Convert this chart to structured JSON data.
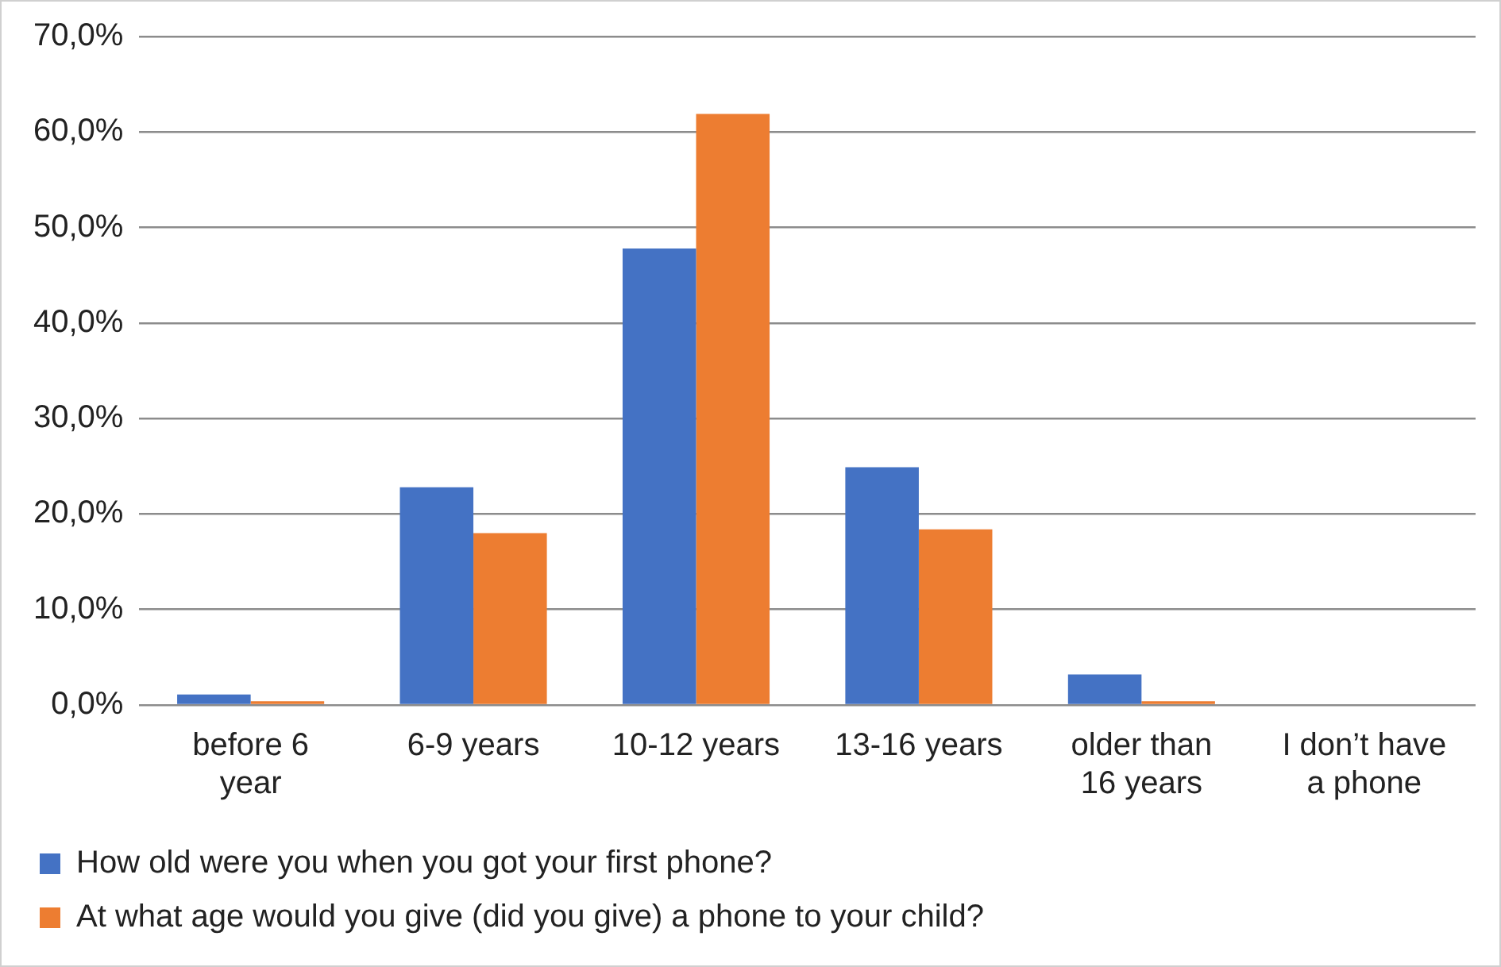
{
  "chart_data": {
    "type": "bar",
    "categories": [
      "before 6 year",
      "6-9 years",
      "10-12 years",
      "13-16 years",
      "older than 16 years",
      "I don’t have a phone"
    ],
    "series": [
      {
        "name": "How old were you when you got your first phone?",
        "color": "#4472c4",
        "values": [
          1.1,
          22.8,
          47.8,
          24.9,
          3.2,
          0
        ]
      },
      {
        "name": "At what age would you give (did you give) a phone to your child?",
        "color": "#ed7d31",
        "values": [
          0.4,
          18.0,
          61.9,
          18.4,
          0.4,
          0
        ]
      }
    ],
    "ylim": [
      0,
      70
    ],
    "yticks": [
      {
        "value": 0,
        "label": "0,0%"
      },
      {
        "value": 10,
        "label": "10,0%"
      },
      {
        "value": 20,
        "label": "20,0%"
      },
      {
        "value": 30,
        "label": "30,0%"
      },
      {
        "value": 40,
        "label": "40,0%"
      },
      {
        "value": 50,
        "label": "50,0%"
      },
      {
        "value": 60,
        "label": "60,0%"
      },
      {
        "value": 70,
        "label": "70,0%"
      }
    ],
    "grid": "y",
    "legend": "bottom"
  }
}
